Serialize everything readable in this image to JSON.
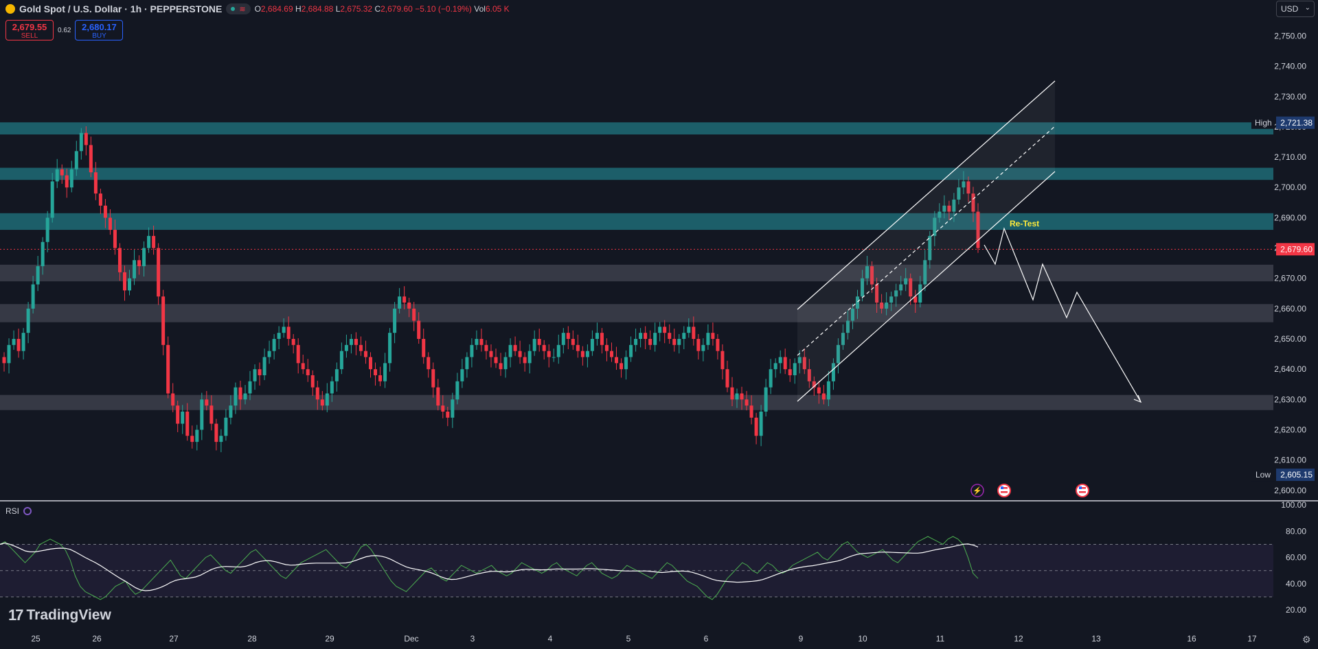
{
  "header": {
    "symbol_title": "Gold Spot / U.S. Dollar · 1h · PEPPERSTONE",
    "market_wave": "≋",
    "o_label": "O",
    "o": "2,684.69",
    "h_label": "H",
    "h": "2,684.88",
    "l_label": "L",
    "l": "2,675.32",
    "c_label": "C",
    "c": "2,679.60",
    "change": "−5.10 (−0.19%)",
    "vol_label": "Vol",
    "vol": "6.05 K"
  },
  "trade": {
    "sell_price": "2,679.55",
    "sell_label": "SELL",
    "spread": "0.62",
    "buy_price": "2,680.17",
    "buy_label": "BUY"
  },
  "currency": {
    "label": "USD",
    "chevron": "⌄"
  },
  "icons": [
    "logo-icon",
    "live-dot-icon",
    "chevron-down-icon",
    "lightning-icon",
    "us-flag-icon",
    "rsi-settings-icon",
    "tradingview-logo-icon",
    "gear-icon"
  ],
  "colors": {
    "background": "#131722",
    "up": "#26a69a",
    "down": "#f23645",
    "zone_teal": "#1e6b76",
    "zone_gray": "#434651",
    "rsi": "#4caf50",
    "rsi_ma": "#ffffff",
    "retest": "#ffeb3b",
    "price_tag": "#f23645",
    "hilo_tag": "#1e3a6e"
  },
  "price_scale": {
    "ticks": [
      "2,750.00",
      "2,740.00",
      "2,730.00",
      "2,720.00",
      "2,710.00",
      "2,700.00",
      "2,690.00",
      "2,680.00",
      "2,670.00",
      "2,660.00",
      "2,650.00",
      "2,640.00",
      "2,630.00",
      "2,620.00",
      "2,610.00",
      "2,600.00"
    ],
    "high_label": "High",
    "high_value": "2,721.38",
    "low_label": "Low",
    "low_value": "2,605.15",
    "current_value": "2,679.60"
  },
  "rsi_scale": {
    "ticks": [
      "100.00",
      "80.00",
      "60.00",
      "40.00",
      "20.00"
    ]
  },
  "rsi_legend": {
    "label": "RSI"
  },
  "time_axis": {
    "labels": [
      "25",
      "26",
      "27",
      "28",
      "29",
      "Dec",
      "3",
      "4",
      "5",
      "6",
      "9",
      "10",
      "11",
      "12",
      "13",
      "16",
      "17"
    ]
  },
  "annotations": {
    "retest": "Re-Test"
  },
  "branding": {
    "name": "TradingView",
    "mark": "17"
  },
  "chart_data": {
    "type": "candlestick",
    "symbol": "XAUUSD",
    "interval": "1h",
    "ylim": [
      2597,
      2756
    ],
    "rsi_ylim": [
      18,
      100
    ],
    "rsi_levels": [
      70,
      50,
      30
    ],
    "grid": false,
    "trading_days": [
      "25",
      "26",
      "27",
      "28",
      "29",
      "Dec",
      "3",
      "4",
      "5",
      "6",
      "9",
      "10",
      "11"
    ],
    "closes": [
      2642,
      2648,
      2650,
      2646,
      2652,
      2660,
      2668,
      2674,
      2682,
      2690,
      2702,
      2706,
      2704,
      2700,
      2706,
      2712,
      2718,
      2714,
      2705,
      2698,
      2694,
      2690,
      2686,
      2680,
      2672,
      2666,
      2670,
      2676,
      2674,
      2680,
      2684,
      2680,
      2664,
      2648,
      2632,
      2628,
      2622,
      2626,
      2618,
      2616,
      2620,
      2630,
      2628,
      2622,
      2616,
      2618,
      2624,
      2628,
      2634,
      2630,
      2632,
      2636,
      2640,
      2638,
      2644,
      2646,
      2650,
      2652,
      2654,
      2650,
      2648,
      2642,
      2640,
      2638,
      2634,
      2630,
      2628,
      2632,
      2636,
      2640,
      2646,
      2648,
      2650,
      2648,
      2646,
      2644,
      2640,
      2638,
      2636,
      2642,
      2652,
      2660,
      2664,
      2662,
      2660,
      2656,
      2650,
      2644,
      2640,
      2634,
      2628,
      2626,
      2624,
      2630,
      2636,
      2640,
      2644,
      2648,
      2650,
      2648,
      2646,
      2644,
      2642,
      2640,
      2644,
      2648,
      2646,
      2644,
      2642,
      2646,
      2650,
      2648,
      2646,
      2644,
      2644,
      2648,
      2652,
      2650,
      2648,
      2646,
      2644,
      2646,
      2650,
      2652,
      2648,
      2646,
      2644,
      2642,
      2640,
      2644,
      2648,
      2650,
      2652,
      2650,
      2648,
      2652,
      2654,
      2652,
      2650,
      2648,
      2650,
      2652,
      2654,
      2650,
      2646,
      2648,
      2652,
      2650,
      2646,
      2640,
      2634,
      2630,
      2632,
      2630,
      2628,
      2624,
      2618,
      2626,
      2634,
      2640,
      2642,
      2644,
      2640,
      2638,
      2642,
      2644,
      2640,
      2636,
      2634,
      2632,
      2630,
      2636,
      2642,
      2648,
      2652,
      2656,
      2660,
      2664,
      2670,
      2674,
      2668,
      2662,
      2660,
      2662,
      2664,
      2666,
      2668,
      2670,
      2664,
      2662,
      2668,
      2676,
      2684,
      2690,
      2692,
      2694,
      2692,
      2696,
      2700,
      2702,
      2698,
      2692,
      2680
    ],
    "rsi": [
      70,
      72,
      68,
      64,
      60,
      56,
      60,
      64,
      70,
      72,
      74,
      72,
      70,
      66,
      58,
      46,
      38,
      34,
      32,
      30,
      28,
      30,
      34,
      38,
      40,
      42,
      36,
      32,
      34,
      38,
      42,
      46,
      50,
      54,
      58,
      52,
      46,
      44,
      48,
      52,
      56,
      60,
      62,
      58,
      54,
      50,
      48,
      52,
      56,
      60,
      64,
      66,
      62,
      58,
      54,
      50,
      46,
      44,
      48,
      52,
      56,
      58,
      60,
      62,
      64,
      66,
      62,
      58,
      54,
      52,
      56,
      62,
      68,
      70,
      66,
      60,
      54,
      48,
      42,
      38,
      36,
      34,
      38,
      42,
      46,
      50,
      52,
      48,
      44,
      42,
      46,
      50,
      54,
      52,
      50,
      48,
      50,
      52,
      54,
      50,
      48,
      46,
      48,
      52,
      56,
      54,
      52,
      50,
      48,
      50,
      54,
      56,
      52,
      50,
      48,
      46,
      50,
      54,
      56,
      52,
      48,
      46,
      44,
      46,
      50,
      54,
      52,
      50,
      48,
      46,
      44,
      48,
      52,
      56,
      54,
      50,
      46,
      42,
      40,
      38,
      34,
      30,
      28,
      32,
      38,
      44,
      48,
      52,
      56,
      54,
      50,
      48,
      52,
      56,
      54,
      50,
      48,
      50,
      54,
      56,
      58,
      60,
      62,
      64,
      60,
      58,
      62,
      66,
      70,
      72,
      68,
      64,
      62,
      60,
      62,
      64,
      66,
      62,
      58,
      56,
      60,
      64,
      68,
      72,
      74,
      76,
      74,
      72,
      70,
      74,
      76,
      74,
      70,
      60,
      48,
      44
    ]
  }
}
